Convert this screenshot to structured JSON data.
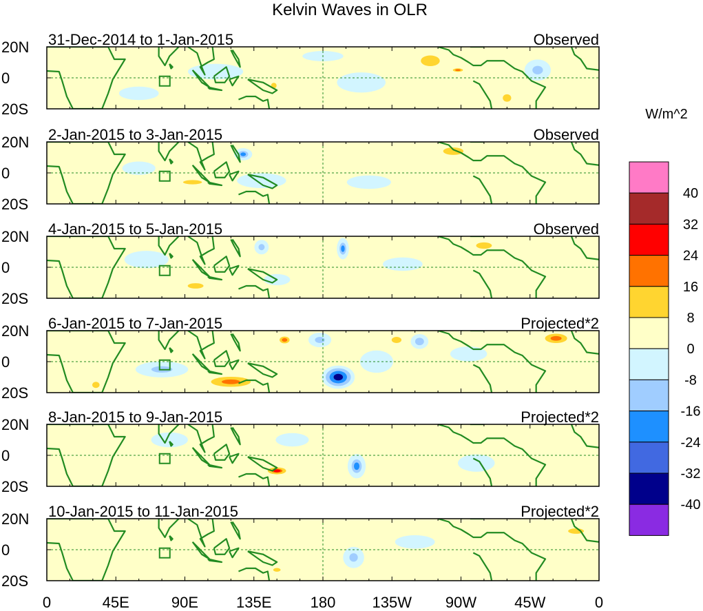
{
  "title": "Kelvin Waves in OLR",
  "colorbar": {
    "unit": "W/m^2",
    "labels": [
      "40",
      "32",
      "24",
      "16",
      "8",
      "0",
      "-8",
      "-16",
      "-24",
      "-32",
      "-40"
    ],
    "colors": [
      "#ff7ac6",
      "#a52a2a",
      "#ff0000",
      "#ff7200",
      "#ffd530",
      "#ffffc8",
      "#d2f5ff",
      "#a0cdff",
      "#1e90ff",
      "#4169e1",
      "#00008b",
      "#8a2be2"
    ]
  },
  "colors": {
    "coast": "#228b22",
    "grid": "#228b22",
    "text": "#000000"
  },
  "axes": {
    "y_ticks": [
      "20N",
      "0",
      "20S"
    ],
    "x_ticks": [
      "0",
      "45E",
      "90E",
      "135E",
      "180",
      "135W",
      "90W",
      "45W",
      "0"
    ]
  },
  "panels": [
    {
      "date": "31-Dec-2014 to 1-Jan-2015",
      "type": "Observed"
    },
    {
      "date": "2-Jan-2015 to 3-Jan-2015",
      "type": "Observed"
    },
    {
      "date": "4-Jan-2015 to 5-Jan-2015",
      "type": "Observed"
    },
    {
      "date": "6-Jan-2015 to 7-Jan-2015",
      "type": "Projected*2"
    },
    {
      "date": "8-Jan-2015 to 9-Jan-2015",
      "type": "Projected*2"
    },
    {
      "date": "10-Jan-2015 to 11-Jan-2015",
      "type": "Projected*2"
    }
  ],
  "anomalies": [
    [
      {
        "lon": 205,
        "lat": -3,
        "v": -6,
        "rx": 22,
        "ry": 9
      },
      {
        "lon": 250,
        "lat": 11,
        "v": 10,
        "rx": 18,
        "ry": 10
      },
      {
        "lon": 268,
        "lat": 5,
        "v": 18,
        "rx": 6,
        "ry": 2
      },
      {
        "lon": 300,
        "lat": -13,
        "v": 10,
        "rx": 8,
        "ry": 7
      },
      {
        "lon": 148,
        "lat": -5,
        "v": 12,
        "rx": 6,
        "ry": 6
      },
      {
        "lon": 110,
        "lat": 4,
        "v": -6,
        "rx": 25,
        "ry": 7
      },
      {
        "lon": 20,
        "lat": -4,
        "v": 8,
        "rx": 8,
        "ry": 6
      },
      {
        "lon": 320,
        "lat": 5,
        "v": -10,
        "rx": 10,
        "ry": 8
      },
      {
        "lon": 60,
        "lat": -10,
        "v": -6,
        "rx": 18,
        "ry": 6
      },
      {
        "lon": 180,
        "lat": 14,
        "v": -5,
        "rx": 20,
        "ry": 5
      }
    ],
    [
      {
        "lon": 128,
        "lat": 12,
        "v": -18,
        "rx": 6,
        "ry": 4
      },
      {
        "lon": 265,
        "lat": 14,
        "v": 12,
        "rx": 22,
        "ry": 8
      },
      {
        "lon": 140,
        "lat": -5,
        "v": -8,
        "rx": 20,
        "ry": 6
      },
      {
        "lon": 95,
        "lat": -6,
        "v": 10,
        "rx": 18,
        "ry": 4
      },
      {
        "lon": 60,
        "lat": 3,
        "v": -6,
        "rx": 15,
        "ry": 6
      },
      {
        "lon": 290,
        "lat": -10,
        "v": 8,
        "rx": 15,
        "ry": 6
      },
      {
        "lon": 210,
        "lat": -6,
        "v": -6,
        "rx": 20,
        "ry": 6
      },
      {
        "lon": 20,
        "lat": -6,
        "v": 6,
        "rx": 12,
        "ry": 6
      }
    ],
    [
      {
        "lon": 140,
        "lat": 13,
        "v": -14,
        "rx": 5,
        "ry": 5
      },
      {
        "lon": 193,
        "lat": 12,
        "v": -18,
        "rx": 4,
        "ry": 7
      },
      {
        "lon": 97,
        "lat": -12,
        "v": 10,
        "rx": 15,
        "ry": 5
      },
      {
        "lon": 65,
        "lat": 5,
        "v": -8,
        "rx": 18,
        "ry": 7
      },
      {
        "lon": 285,
        "lat": 14,
        "v": 10,
        "rx": 15,
        "ry": 6
      },
      {
        "lon": 232,
        "lat": 2,
        "v": -6,
        "rx": 18,
        "ry": 6
      },
      {
        "lon": 345,
        "lat": -5,
        "v": 6,
        "rx": 12,
        "ry": 8
      },
      {
        "lon": 150,
        "lat": -8,
        "v": -6,
        "rx": 12,
        "ry": 5
      }
    ],
    [
      {
        "lon": 190,
        "lat": -10,
        "v": -34,
        "rx": 10,
        "ry": 7
      },
      {
        "lon": 120,
        "lat": -13,
        "v": 22,
        "rx": 20,
        "ry": 5
      },
      {
        "lon": 155,
        "lat": 14,
        "v": 18,
        "rx": 6,
        "ry": 4
      },
      {
        "lon": 178,
        "lat": 14,
        "v": -14,
        "rx": 8,
        "ry": 5
      },
      {
        "lon": 228,
        "lat": 14,
        "v": 14,
        "rx": 8,
        "ry": 5
      },
      {
        "lon": 243,
        "lat": 13,
        "v": -16,
        "rx": 6,
        "ry": 5
      },
      {
        "lon": 332,
        "lat": 15,
        "v": 20,
        "rx": 12,
        "ry": 5
      },
      {
        "lon": 75,
        "lat": -5,
        "v": -10,
        "rx": 20,
        "ry": 6
      },
      {
        "lon": 32,
        "lat": -15,
        "v": 14,
        "rx": 6,
        "ry": 5
      },
      {
        "lon": 275,
        "lat": 5,
        "v": -8,
        "rx": 15,
        "ry": 6
      },
      {
        "lon": 215,
        "lat": 0,
        "v": -6,
        "rx": 15,
        "ry": 10
      },
      {
        "lon": 290,
        "lat": -12,
        "v": 8,
        "rx": 10,
        "ry": 6
      }
    ],
    [
      {
        "lon": 150,
        "lat": -10,
        "v": 28,
        "rx": 8,
        "ry": 3
      },
      {
        "lon": 202,
        "lat": -7,
        "v": -18,
        "rx": 6,
        "ry": 8
      },
      {
        "lon": 80,
        "lat": 10,
        "v": -8,
        "rx": 15,
        "ry": 6
      },
      {
        "lon": 40,
        "lat": -5,
        "v": 6,
        "rx": 15,
        "ry": 8
      },
      {
        "lon": 280,
        "lat": -5,
        "v": -8,
        "rx": 15,
        "ry": 7
      },
      {
        "lon": 160,
        "lat": 10,
        "v": -6,
        "rx": 15,
        "ry": 6
      },
      {
        "lon": 340,
        "lat": 10,
        "v": 6,
        "rx": 15,
        "ry": 8
      }
    ],
    [
      {
        "lon": 150,
        "lat": -13,
        "v": 14,
        "rx": 6,
        "ry": 3
      },
      {
        "lon": 200,
        "lat": -5,
        "v": -10,
        "rx": 8,
        "ry": 8
      },
      {
        "lon": 170,
        "lat": 6,
        "v": 8,
        "rx": 15,
        "ry": 5
      },
      {
        "lon": 345,
        "lat": 12,
        "v": 10,
        "rx": 15,
        "ry": 5
      },
      {
        "lon": 270,
        "lat": -5,
        "v": 6,
        "rx": 15,
        "ry": 6
      },
      {
        "lon": 100,
        "lat": -12,
        "v": 6,
        "rx": 15,
        "ry": 4
      },
      {
        "lon": 240,
        "lat": 5,
        "v": -6,
        "rx": 18,
        "ry": 6
      }
    ]
  ],
  "continents": [
    [
      [
        -15,
        20
      ],
      [
        -17,
        14
      ],
      [
        -10,
        5
      ],
      [
        8,
        4
      ],
      [
        10,
        -2
      ],
      [
        13,
        -12
      ],
      [
        17,
        -20
      ],
      [
        36,
        -20
      ],
      [
        40,
        -10
      ],
      [
        43,
        -1
      ],
      [
        51,
        12
      ],
      [
        44,
        12
      ],
      [
        40,
        20
      ],
      [
        -15,
        20
      ]
    ],
    [
      [
        73,
        20
      ],
      [
        73,
        14
      ],
      [
        77,
        8
      ],
      [
        80,
        14
      ],
      [
        87,
        21
      ]
    ],
    [
      [
        80,
        9
      ],
      [
        82,
        7
      ],
      [
        81,
        6
      ],
      [
        80,
        9
      ]
    ],
    [
      [
        92,
        20
      ],
      [
        98,
        16
      ],
      [
        101,
        7
      ],
      [
        103,
        2
      ],
      [
        100,
        7
      ],
      [
        105,
        10
      ],
      [
        109,
        12
      ],
      [
        108,
        20
      ]
    ],
    [
      [
        95,
        5
      ],
      [
        103,
        -3
      ],
      [
        106,
        -6
      ],
      [
        101,
        -3
      ],
      [
        95,
        5
      ]
    ],
    [
      [
        105,
        -6
      ],
      [
        114,
        -8
      ],
      [
        106,
        -7
      ],
      [
        105,
        -6
      ]
    ],
    [
      [
        109,
        1
      ],
      [
        117,
        7
      ],
      [
        119,
        1
      ],
      [
        116,
        -3
      ],
      [
        110,
        -3
      ],
      [
        109,
        1
      ]
    ],
    [
      [
        119,
        -1
      ],
      [
        125,
        1
      ],
      [
        121,
        -5
      ],
      [
        119,
        -1
      ]
    ],
    [
      [
        120,
        18
      ],
      [
        122,
        14
      ],
      [
        126,
        7
      ],
      [
        125,
        12
      ],
      [
        121,
        18
      ]
    ],
    [
      [
        131,
        -1
      ],
      [
        141,
        -3
      ],
      [
        150,
        -8
      ],
      [
        147,
        -10
      ],
      [
        141,
        -8
      ],
      [
        131,
        -1
      ]
    ],
    [
      [
        125,
        -14
      ],
      [
        130,
        -12
      ],
      [
        136,
        -12
      ],
      [
        141,
        -15
      ],
      [
        144,
        -14
      ],
      [
        145,
        -20
      ]
    ],
    [
      [
        255,
        20
      ],
      [
        262,
        18
      ],
      [
        265,
        15
      ],
      [
        270,
        13
      ],
      [
        275,
        10
      ],
      [
        278,
        8
      ],
      [
        283,
        8
      ],
      [
        287,
        11
      ],
      [
        298,
        11
      ],
      [
        305,
        6
      ],
      [
        310,
        4
      ],
      [
        316,
        -2
      ],
      [
        325,
        -6
      ],
      [
        319,
        -15
      ],
      [
        319,
        -20
      ]
    ],
    [
      [
        278,
        -2
      ],
      [
        282,
        -4
      ],
      [
        289,
        -15
      ],
      [
        290,
        -20
      ]
    ],
    [
      [
        270,
        20
      ],
      [
        278,
        22
      ],
      [
        285,
        20
      ],
      [
        276,
        20
      ]
    ],
    [
      [
        342,
        20
      ],
      [
        344,
        15
      ],
      [
        348,
        12
      ],
      [
        352,
        6
      ],
      [
        360,
        5
      ]
    ]
  ]
}
